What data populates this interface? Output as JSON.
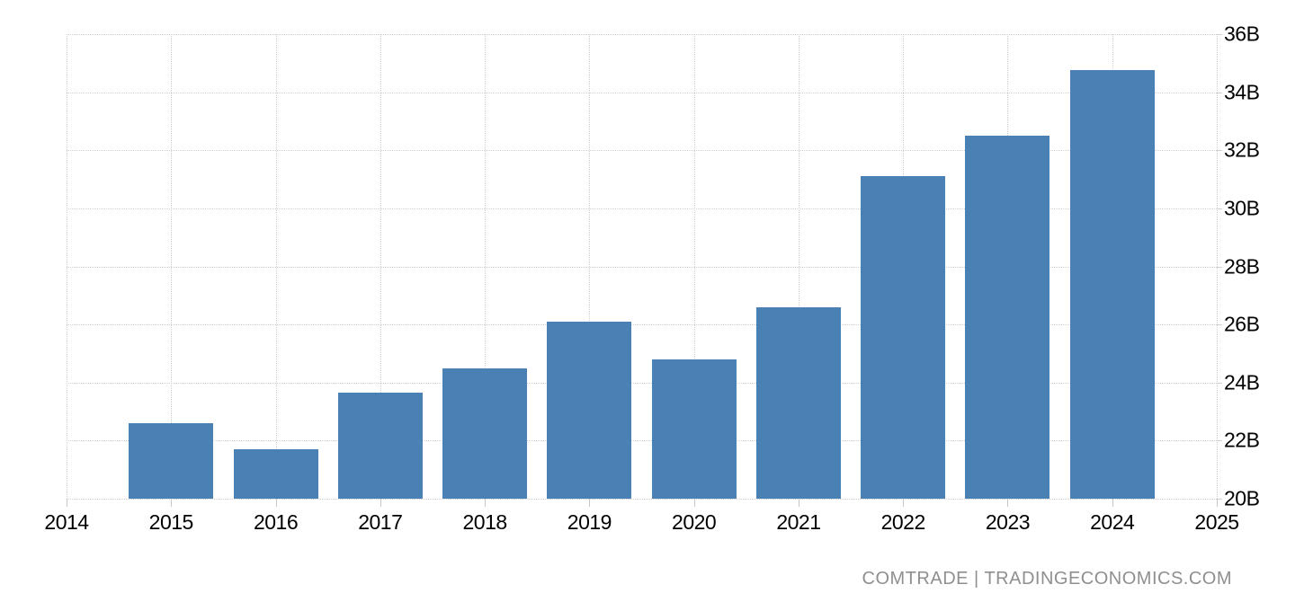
{
  "chart_data": {
    "type": "bar",
    "title": "",
    "xlabel": "",
    "ylabel": "",
    "unit": "B",
    "categories": [
      "2015",
      "2016",
      "2017",
      "2018",
      "2019",
      "2020",
      "2021",
      "2022",
      "2023",
      "2024"
    ],
    "values": [
      22.6,
      21.7,
      23.65,
      24.5,
      26.1,
      24.8,
      26.6,
      31.1,
      32.5,
      34.75
    ],
    "ylim": [
      20,
      36
    ],
    "y_tick_values": [
      36,
      34,
      32,
      30,
      28,
      26,
      24,
      22,
      20
    ],
    "y_tick_labels": [
      "36B",
      "34B",
      "32B",
      "30B",
      "28B",
      "26B",
      "24B",
      "22B",
      "20B"
    ],
    "x_tick_labels": [
      "2014",
      "2015",
      "2016",
      "2017",
      "2018",
      "2019",
      "2020",
      "2021",
      "2022",
      "2023",
      "2024",
      "2025"
    ],
    "grid": true,
    "legend_position": "none",
    "bar_color": "#4a81b4",
    "gridline_color": "#d0d0d0",
    "axis_text_color": "#000000"
  },
  "attribution": {
    "text": "COMTRADE | TRADINGECONOMICS.COM",
    "color": "#8f8f8f"
  }
}
